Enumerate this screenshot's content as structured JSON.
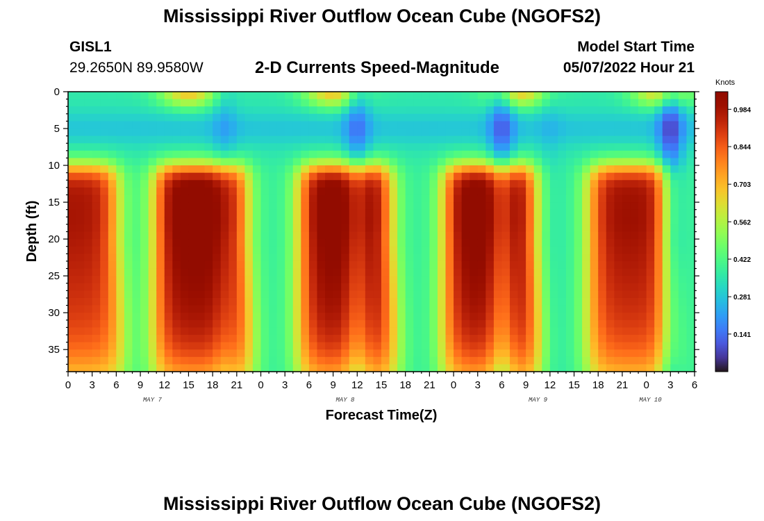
{
  "title": "Mississippi River Outflow Ocean Cube (NGOFS2)",
  "station": {
    "id": "GISL1",
    "coords": "29.2650N  89.9580W"
  },
  "model_start": {
    "label": "Model Start Time",
    "value": "05/07/2022 Hour 21"
  },
  "footer_title": "Mississippi River Outflow Ocean Cube (NGOFS2)",
  "chart_data": {
    "type": "heatmap",
    "title": "2-D Currents Speed-Magnitude",
    "xlabel": "Forecast Time(Z)",
    "ylabel": "Depth (ft)",
    "x_tick_labels": [
      "0",
      "3",
      "6",
      "9",
      "12",
      "15",
      "18",
      "21",
      "0",
      "3",
      "6",
      "9",
      "12",
      "15",
      "18",
      "21",
      "0",
      "3",
      "6",
      "9",
      "12",
      "15",
      "18",
      "21",
      "0",
      "3",
      "6"
    ],
    "x_hour_range": [
      0,
      78
    ],
    "date_labels": [
      {
        "label": "MAY 7",
        "hour": 10.5
      },
      {
        "label": "MAY 8",
        "hour": 34.5
      },
      {
        "label": "MAY 9",
        "hour": 58.5
      },
      {
        "label": "MAY 10",
        "hour": 72.5
      }
    ],
    "y_ticks": [
      "0",
      "5",
      "10",
      "15",
      "20",
      "25",
      "30",
      "35"
    ],
    "y_tick_values": [
      0,
      5,
      10,
      15,
      20,
      25,
      30,
      35
    ],
    "ylim": [
      0,
      38
    ],
    "colorbar": {
      "label": "Knots",
      "ticks": [
        "0.984",
        "0.844",
        "0.703",
        "0.562",
        "0.422",
        "0.281",
        "0.141"
      ],
      "tick_values": [
        0.984,
        0.844,
        0.703,
        0.562,
        0.422,
        0.281,
        0.141
      ],
      "range": [
        0,
        1.05
      ]
    },
    "speed_model": {
      "surface_peak_hours": [
        15,
        33,
        56,
        74
      ],
      "deep_blocks": [
        {
          "start": -5,
          "end": 6,
          "peak": 0.9
        },
        {
          "start": 11,
          "end": 22,
          "peak": 1.0
        },
        {
          "start": 29,
          "end": 40,
          "peak": 1.0
        },
        {
          "start": 47,
          "end": 58,
          "peak": 1.0
        },
        {
          "start": 65,
          "end": 75,
          "peak": 0.92
        }
      ],
      "calm_hours": [
        [
          60,
          0.1
        ],
        [
          36,
          0.4
        ],
        [
          19.5,
          0.2
        ],
        [
          54,
          0.5
        ],
        [
          75,
          0.6
        ]
      ]
    }
  }
}
